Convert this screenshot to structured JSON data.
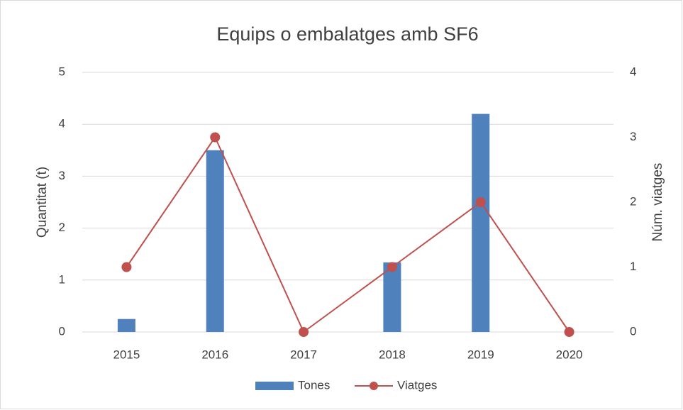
{
  "chart_data": {
    "type": "bar",
    "title": "Equips o embalatges amb SF6",
    "categories": [
      "2015",
      "2016",
      "2017",
      "2018",
      "2019",
      "2020"
    ],
    "series": [
      {
        "name": "Tones",
        "type": "bar",
        "color": "#4f81bd",
        "values": [
          0.25,
          3.5,
          0,
          1.34,
          4.2,
          0
        ]
      },
      {
        "name": "Viatges",
        "type": "line",
        "axis": "y2",
        "color": "#c0504d",
        "values": [
          1,
          3,
          0,
          1,
          2,
          0
        ]
      }
    ],
    "ylabel": "Quantitat (t)",
    "y2label": "Núm. viatges",
    "ylim": [
      0,
      5
    ],
    "yticks": [
      0,
      1,
      2,
      3,
      4,
      5
    ],
    "y2lim": [
      0,
      4
    ],
    "y2ticks": [
      0,
      1,
      2,
      3,
      4
    ],
    "grid": true,
    "legend": "bottom"
  }
}
